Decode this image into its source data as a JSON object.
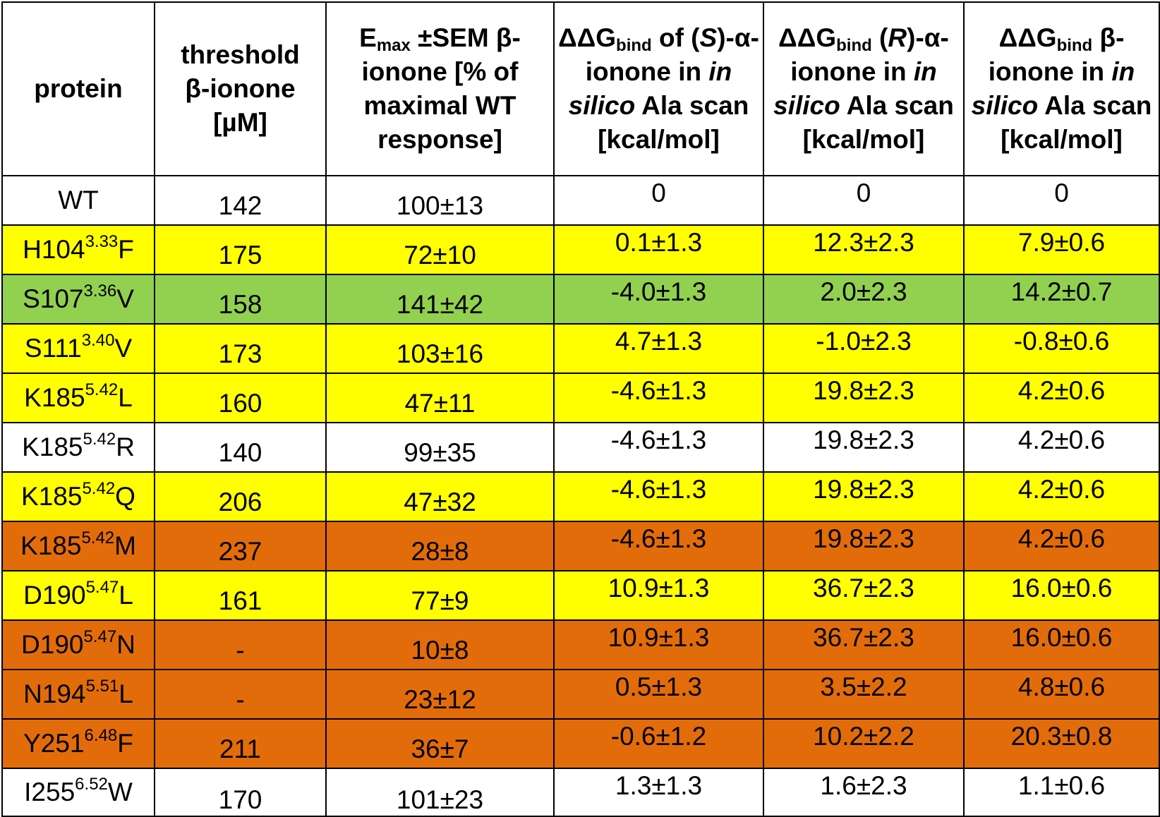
{
  "headers": {
    "protein": "protein",
    "threshold": {
      "line1": "threshold",
      "beta": "β",
      "line2": "-ionone",
      "unit": "[µM]"
    },
    "emax": {
      "e": "E",
      "sub": "max",
      "rest": " ±SEM β-ionone [% of maximal WT response]"
    },
    "ddg_s": {
      "dd": "ΔΔG",
      "sub": "bind",
      "of": " of (",
      "s": "S",
      "rest1": ")-α-ionone in ",
      "insilico": "in silico",
      "rest2": " Ala scan [kcal/mol]"
    },
    "ddg_r": {
      "dd": "ΔΔG",
      "sub": "bind",
      "open": " (",
      "r": "R",
      "rest1": ")-α-ionone in ",
      "insilico": "in silico",
      "rest2": " Ala scan [kcal/mol]"
    },
    "ddg_b": {
      "dd": "ΔΔG",
      "sub": "bind",
      "rest1": " β-ionone in ",
      "insilico": "in silico",
      "rest2": " Ala scan [kcal/mol]"
    }
  },
  "colors": {
    "yellow": "#ffff00",
    "green": "#92d050",
    "orange": "#e36c0a",
    "white": "#ffffff"
  },
  "rows": [
    {
      "base": "WT",
      "sup": "",
      "mut": "",
      "threshold": "142",
      "emax": "100±13",
      "ddg_s": "0",
      "ddg_r": "0",
      "ddg_b": "0",
      "color": "white"
    },
    {
      "base": "H104",
      "sup": "3.33",
      "mut": "F",
      "threshold": "175",
      "emax": "72±10",
      "ddg_s": "0.1±1.3",
      "ddg_r": "12.3±2.3",
      "ddg_b": "7.9±0.6",
      "color": "yellow"
    },
    {
      "base": "S107",
      "sup": "3.36",
      "mut": "V",
      "threshold": "158",
      "emax": "141±42",
      "ddg_s": "-4.0±1.3",
      "ddg_r": "2.0±2.3",
      "ddg_b": "14.2±0.7",
      "color": "green"
    },
    {
      "base": "S111",
      "sup": "3.40",
      "mut": "V",
      "threshold": "173",
      "emax": "103±16",
      "ddg_s": "4.7±1.3",
      "ddg_r": "-1.0±2.3",
      "ddg_b": "-0.8±0.6",
      "color": "yellow"
    },
    {
      "base": "K185",
      "sup": "5.42",
      "mut": "L",
      "threshold": "160",
      "emax": "47±11",
      "ddg_s": "-4.6±1.3",
      "ddg_r": "19.8±2.3",
      "ddg_b": "4.2±0.6",
      "color": "yellow"
    },
    {
      "base": "K185",
      "sup": "5.42",
      "mut": "R",
      "threshold": "140",
      "emax": "99±35",
      "ddg_s": "-4.6±1.3",
      "ddg_r": "19.8±2.3",
      "ddg_b": "4.2±0.6",
      "color": "white"
    },
    {
      "base": "K185",
      "sup": "5.42",
      "mut": "Q",
      "threshold": "206",
      "emax": "47±32",
      "ddg_s": "-4.6±1.3",
      "ddg_r": "19.8±2.3",
      "ddg_b": "4.2±0.6",
      "color": "yellow"
    },
    {
      "base": "K185",
      "sup": "5.42",
      "mut": "M",
      "threshold": "237",
      "emax": "28±8",
      "ddg_s": "-4.6±1.3",
      "ddg_r": "19.8±2.3",
      "ddg_b": "4.2±0.6",
      "color": "orange"
    },
    {
      "base": "D190",
      "sup": "5.47",
      "mut": "L",
      "threshold": "161",
      "emax": "77±9",
      "ddg_s": "10.9±1.3",
      "ddg_r": "36.7±2.3",
      "ddg_b": "16.0±0.6",
      "color": "yellow"
    },
    {
      "base": "D190",
      "sup": "5.47",
      "mut": "N",
      "threshold": "-",
      "emax": "10±8",
      "ddg_s": "10.9±1.3",
      "ddg_r": "36.7±2.3",
      "ddg_b": "16.0±0.6",
      "color": "orange"
    },
    {
      "base": "N194",
      "sup": "5.51",
      "mut": "L",
      "threshold": "-",
      "emax": "23±12",
      "ddg_s": "0.5±1.3",
      "ddg_r": "3.5±2.2",
      "ddg_b": "4.8±0.6",
      "color": "orange"
    },
    {
      "base": "Y251",
      "sup": "6.48",
      "mut": "F",
      "threshold": "211",
      "emax": "36±7",
      "ddg_s": "-0.6±1.2",
      "ddg_r": "10.2±2.2",
      "ddg_b": "20.3±0.8",
      "color": "orange"
    },
    {
      "base": "I255",
      "sup": "6.52",
      "mut": "W",
      "threshold": "170",
      "emax": "101±23",
      "ddg_s": "1.3±1.3",
      "ddg_r": "1.6±2.3",
      "ddg_b": "1.1±0.6",
      "color": "white"
    }
  ]
}
